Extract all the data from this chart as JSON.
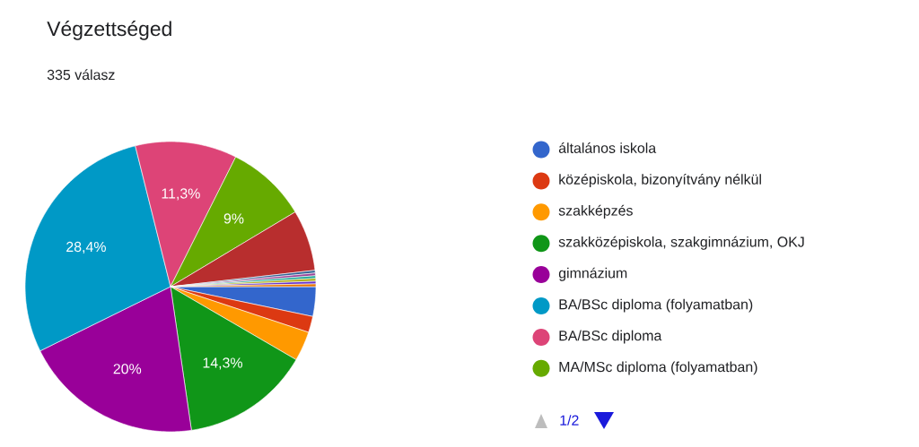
{
  "chart_data": {
    "type": "pie",
    "title": "Végzettséged",
    "subtitle": "335 válasz",
    "categories": [
      "általános iskola",
      "középiskola, bizonyítvány nélkül",
      "szakképzés",
      "szakközépiskola, szakgimnázium, OKJ",
      "gimnázium",
      "BA/BSc diploma (folyamatban)",
      "BA/BSc diploma",
      "MA/MSc diploma (folyamatban)",
      null,
      null,
      null,
      null,
      null,
      null,
      null
    ],
    "values": [
      3.3,
      1.8,
      3.3,
      14.3,
      20,
      28.4,
      11.3,
      9,
      6.8,
      0.3,
      0.3,
      0.3,
      0.3,
      0.3,
      0.3
    ],
    "value_labels": [
      null,
      null,
      null,
      "14,3%",
      "20%",
      "28,4%",
      "11,3%",
      "9%",
      null,
      null,
      null,
      null,
      null,
      null,
      null
    ],
    "colors": [
      "#3366cc",
      "#dc3912",
      "#ff9900",
      "#109618",
      "#990099",
      "#0099c6",
      "#dd4477",
      "#66aa00",
      "#b82e2e",
      "#316395",
      "#994499",
      "#22aa99",
      "#aaaa11",
      "#6633cc",
      "#e67300"
    ],
    "legend": "right",
    "annotations": [
      "1/2"
    ]
  }
}
